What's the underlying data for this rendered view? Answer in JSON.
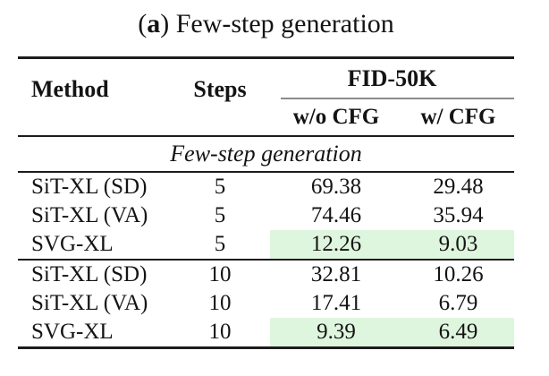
{
  "caption": {
    "open": "(",
    "bold": "a",
    "rest": ") Few-step generation"
  },
  "table": {
    "headers": {
      "method": "Method",
      "steps": "Steps",
      "group": "FID-50K",
      "sub_wo": "w/o CFG",
      "sub_w": "w/ CFG"
    },
    "section": "Few-step generation",
    "rows": [
      {
        "method": "SiT-XL (SD)",
        "steps": "5",
        "wo_cfg": "69.38",
        "w_cfg": "29.48",
        "highlight": false
      },
      {
        "method": "SiT-XL (VA)",
        "steps": "5",
        "wo_cfg": "74.46",
        "w_cfg": "35.94",
        "highlight": false
      },
      {
        "method": "SVG-XL",
        "steps": "5",
        "wo_cfg": "12.26",
        "w_cfg": "9.03",
        "highlight": true
      },
      {
        "method": "SiT-XL (SD)",
        "steps": "10",
        "wo_cfg": "32.81",
        "w_cfg": "10.26",
        "highlight": false
      },
      {
        "method": "SiT-XL (VA)",
        "steps": "10",
        "wo_cfg": "17.41",
        "w_cfg": "6.79",
        "highlight": false
      },
      {
        "method": "SVG-XL",
        "steps": "10",
        "wo_cfg": "9.39",
        "w_cfg": "6.49",
        "highlight": true
      }
    ]
  },
  "colors": {
    "highlight": "#dff6de",
    "rule": "#1c1c1c",
    "cmidrule": "#8b8b8b"
  },
  "chart_data": {
    "type": "table",
    "title": "(a) Few-step generation",
    "columns": [
      "Method",
      "Steps",
      "FID-50K w/o CFG",
      "FID-50K w/ CFG"
    ],
    "section": "Few-step generation",
    "rows": [
      [
        "SiT-XL (SD)",
        5,
        69.38,
        29.48
      ],
      [
        "SiT-XL (VA)",
        5,
        74.46,
        35.94
      ],
      [
        "SVG-XL",
        5,
        12.26,
        9.03
      ],
      [
        "SiT-XL (SD)",
        10,
        32.81,
        10.26
      ],
      [
        "SiT-XL (VA)",
        10,
        17.41,
        6.79
      ],
      [
        "SVG-XL",
        10,
        9.39,
        6.49
      ]
    ],
    "highlighted_rows": [
      2,
      5
    ]
  }
}
